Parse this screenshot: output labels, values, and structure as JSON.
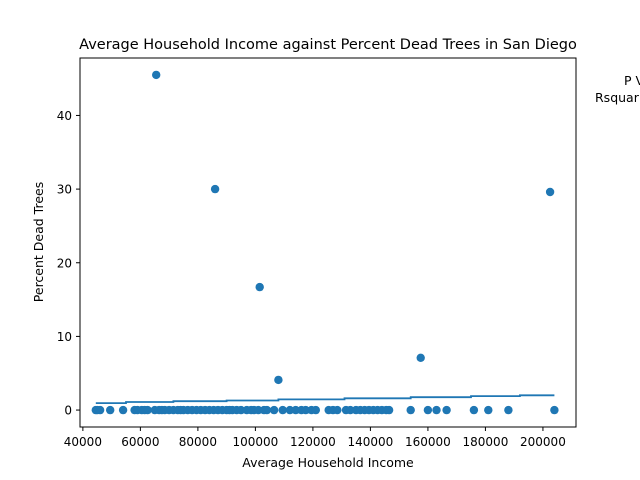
{
  "chart_data": {
    "type": "scatter",
    "title": "Average Household Income against Percent Dead Trees in San Diego",
    "xlabel": "Average Household Income",
    "ylabel": "Percent Dead Trees",
    "xlim": [
      39000,
      211500
    ],
    "ylim": [
      -2.3,
      47.8
    ],
    "xticks": [
      40000,
      60000,
      80000,
      100000,
      120000,
      140000,
      160000,
      180000,
      200000
    ],
    "yticks": [
      0,
      10,
      20,
      30,
      40
    ],
    "grid": false,
    "colors": {
      "points": "#1f77b4",
      "fit_line": "#1f77b4"
    },
    "annotation_lines": [
      "P V",
      "Rsquar"
    ],
    "series": [
      {
        "x": [
          44500,
          45000,
          46000,
          49500,
          54000,
          58000,
          59000,
          60500,
          61500,
          62500,
          65000,
          65500,
          66500,
          67500,
          68500,
          70000,
          71500,
          73000,
          74000,
          75000,
          76500,
          78000,
          79500,
          81000,
          82500,
          84000,
          85500,
          86000,
          87000,
          88500,
          90000,
          91000,
          92000,
          93500,
          95000,
          97000,
          98500,
          99500,
          101000,
          101500,
          103000,
          104000,
          106500,
          108000,
          109500,
          112000,
          114000,
          116000,
          117500,
          119500,
          121000,
          125500,
          127000,
          128500,
          131500,
          133000,
          135000,
          136500,
          138000,
          139500,
          141000,
          142500,
          144000,
          145500,
          146500,
          154000,
          157500,
          160000,
          163000,
          166500,
          176000,
          181000,
          188000,
          202500,
          204000
        ],
        "y": [
          0,
          0,
          0,
          0,
          0,
          0,
          0,
          0,
          0,
          0,
          0,
          45.5,
          0,
          0,
          0,
          0,
          0,
          0,
          0,
          0,
          0,
          0,
          0,
          0,
          0,
          0,
          0,
          30,
          0,
          0,
          0,
          0,
          0,
          0,
          0,
          0,
          0,
          0,
          0,
          16.7,
          0,
          0,
          0,
          4.1,
          0,
          0,
          0,
          0,
          0,
          0,
          0,
          0,
          0,
          0,
          0,
          0,
          0,
          0,
          0,
          0,
          0,
          0,
          0,
          0,
          0,
          0,
          7.1,
          0,
          0,
          0,
          0,
          0,
          0,
          29.6,
          0
        ]
      }
    ],
    "fit_line": {
      "x": [
        44500,
        55000,
        55000,
        71500,
        71500,
        90000,
        90000,
        108000,
        108000,
        131000,
        131000,
        154000,
        154000,
        175000,
        175000,
        192000,
        192000,
        204000
      ],
      "y": [
        0.95,
        0.95,
        1.1,
        1.1,
        1.2,
        1.2,
        1.3,
        1.3,
        1.45,
        1.45,
        1.6,
        1.6,
        1.75,
        1.75,
        1.9,
        1.9,
        2.0,
        2.0
      ]
    }
  }
}
